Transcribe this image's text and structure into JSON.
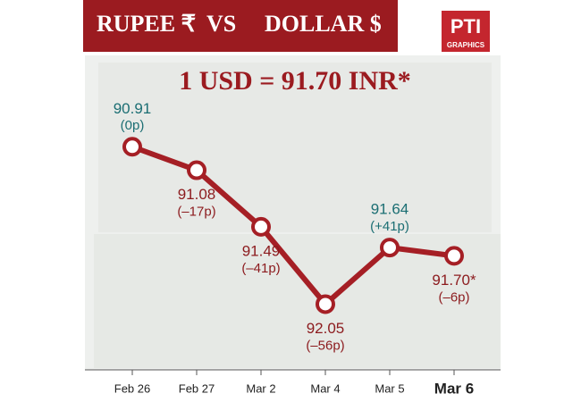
{
  "chart_data": {
    "type": "line",
    "title_parts": [
      "RUPEE ₹",
      "VS",
      "DOLLAR $"
    ],
    "subtitle": "1 USD = 91.70 INR*",
    "logo": "PTI",
    "logo_caption": "GRAPHICS",
    "categories": [
      "Feb 26",
      "Feb 27",
      "Mar 2",
      "Mar 4",
      "Mar 5",
      "Mar 6"
    ],
    "values": [
      90.91,
      91.08,
      91.49,
      92.05,
      91.64,
      91.7
    ],
    "value_labels": [
      "90.91",
      "91.08",
      "91.49",
      "92.05",
      "91.64",
      "91.70*"
    ],
    "change_labels": [
      "(0p)",
      "(–17p)",
      "(–41p)",
      "(–56p)",
      "(+41p)",
      "(–6p)"
    ],
    "color": "#a51f25",
    "label_colors": {
      "gain": "#1b6e73",
      "loss": "#8c1b1e"
    },
    "ylim": [
      92.5,
      90.3
    ]
  }
}
